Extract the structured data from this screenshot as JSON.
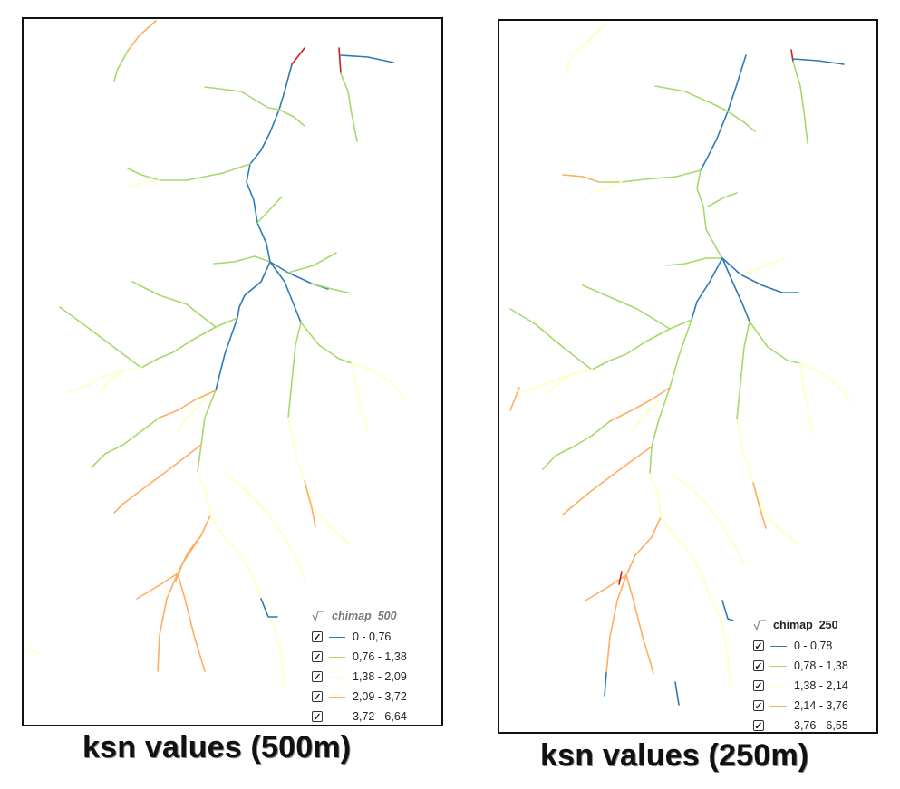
{
  "panels": [
    {
      "layer_name": "chimap_500",
      "caption": "ksn values (500m)",
      "classes": [
        {
          "label": "0 - 0,76",
          "color": "#2c7bb6",
          "checked": true
        },
        {
          "label": "0,76 - 1,38",
          "color": "#a6d96a",
          "checked": true
        },
        {
          "label": "1,38 - 2,09",
          "color": "#ffffbf",
          "checked": true
        },
        {
          "label": "2,09 - 3,72",
          "color": "#fdae61",
          "checked": true
        },
        {
          "label": "3,72 - 6,64",
          "color": "#d7191c",
          "checked": true
        }
      ]
    },
    {
      "layer_name": "chimap_250",
      "caption": "ksn values (250m)",
      "classes": [
        {
          "label": "0 - 0,78",
          "color": "#2c7bb6",
          "checked": true
        },
        {
          "label": "0,78 - 1,38",
          "color": "#a6d96a",
          "checked": true
        },
        {
          "label": "1,38 - 2,14",
          "color": "#ffffbf",
          "checked": true
        },
        {
          "label": "2,14 - 3,76",
          "color": "#fdae61",
          "checked": true
        },
        {
          "label": "3,76 - 6,55",
          "color": "#d7191c",
          "checked": true
        }
      ]
    }
  ]
}
